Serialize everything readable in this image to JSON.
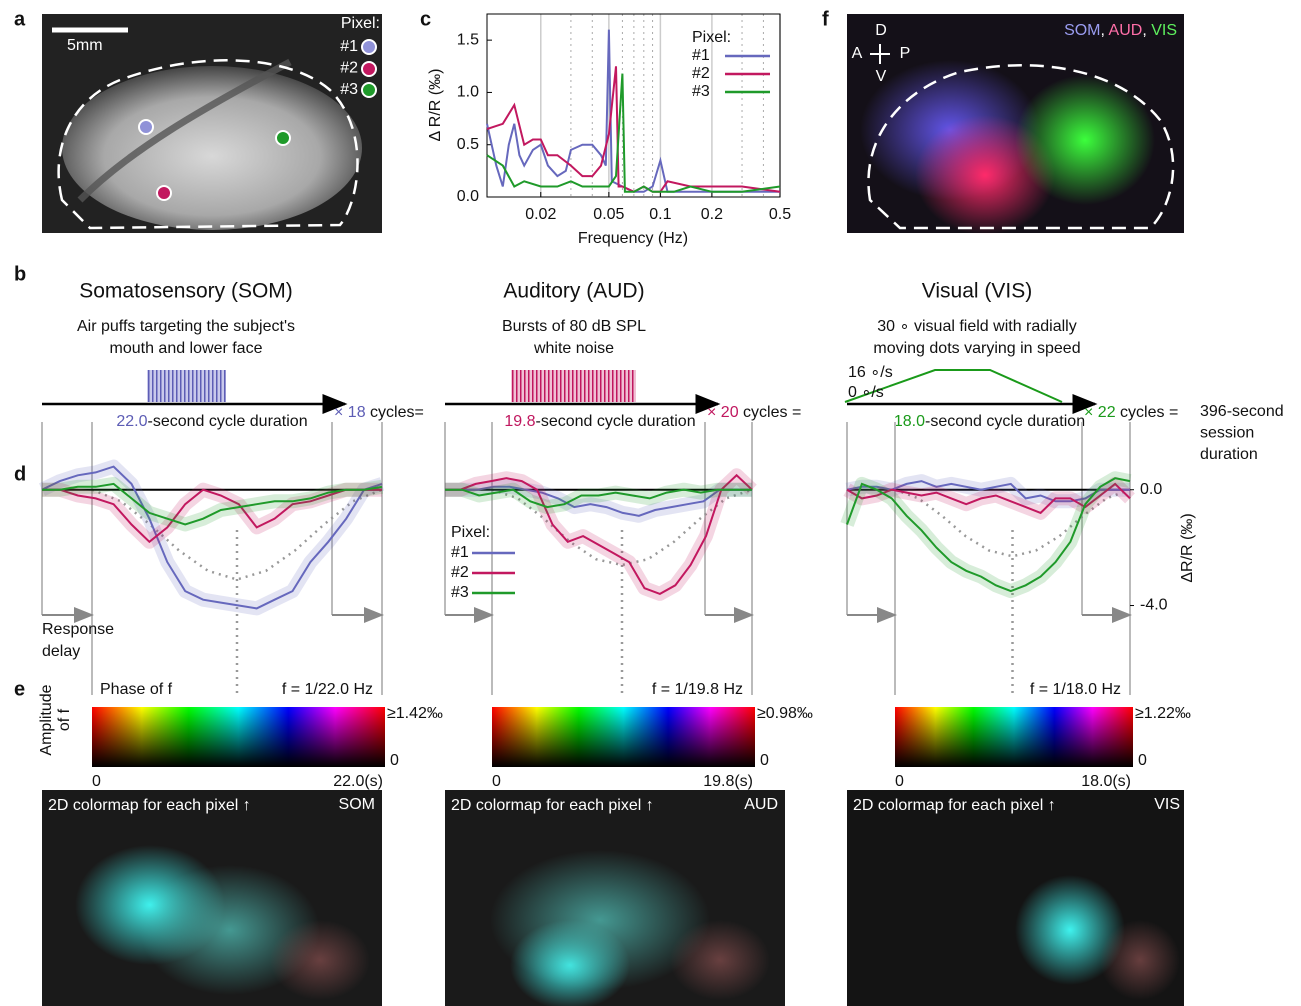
{
  "panel_labels": [
    "a",
    "b",
    "c",
    "d",
    "e",
    "f"
  ],
  "panel_a": {
    "scale_bar": "5mm",
    "legend_title": "Pixel:",
    "pixels": [
      {
        "name": "#1",
        "color": "#6668bd"
      },
      {
        "name": "#2",
        "color": "#c2185f"
      },
      {
        "name": "#3",
        "color": "#1f9a2a"
      }
    ]
  },
  "panel_c": {
    "type": "line",
    "ylabel": "Δ R/R (‰)",
    "xlabel": "Frequency (Hz)",
    "log_x": true,
    "grid": true,
    "xlim": [
      0.0097,
      0.5
    ],
    "ylim": [
      0,
      1.75
    ],
    "xticks": [
      0.02,
      0.05,
      0.1,
      0.2,
      0.5
    ],
    "yticks": [
      {
        "value": 0,
        "label": "0.0"
      },
      0.5,
      {
        "value": 1,
        "label": "1.0"
      },
      1.5
    ],
    "dotted_lines": [
      0.03,
      0.04,
      0.06,
      0.07,
      0.08,
      0.09,
      0.3,
      0.4
    ],
    "series": [
      {
        "x": [
          0.0097,
          0.011,
          0.012,
          0.013,
          0.014,
          0.015,
          0.016,
          0.018,
          0.02,
          0.022,
          0.025,
          0.028,
          0.03,
          0.035,
          0.04,
          0.045,
          0.048,
          0.05,
          0.052,
          0.06,
          0.07,
          0.08,
          0.09,
          0.1,
          0.11,
          0.15,
          0.2,
          0.3,
          0.5
        ],
        "values": [
          0.7,
          0.3,
          0.1,
          0.5,
          0.7,
          0.4,
          0.3,
          0.45,
          0.5,
          0.3,
          0.2,
          0.25,
          0.45,
          0.5,
          0.5,
          0.4,
          0.3,
          1.6,
          0.15,
          0.1,
          0.05,
          0.05,
          0.1,
          0.35,
          0.05,
          0.05,
          0.05,
          0.05,
          0.05
        ]
      },
      {
        "x": [
          0.0097,
          0.012,
          0.014,
          0.016,
          0.018,
          0.02,
          0.022,
          0.025,
          0.03,
          0.035,
          0.04,
          0.045,
          0.05,
          0.055,
          0.057,
          0.06,
          0.07,
          0.08,
          0.09,
          0.1,
          0.11,
          0.15,
          0.2,
          0.3,
          0.5
        ],
        "values": [
          0.65,
          0.7,
          0.88,
          0.5,
          0.55,
          0.55,
          0.4,
          0.4,
          0.3,
          0.2,
          0.2,
          0.3,
          0.6,
          1.25,
          0.1,
          0.1,
          0.05,
          0.1,
          0.05,
          0.05,
          0.15,
          0.1,
          0.1,
          0.1,
          0.05
        ]
      },
      {
        "x": [
          0.0097,
          0.012,
          0.014,
          0.016,
          0.02,
          0.025,
          0.03,
          0.035,
          0.04,
          0.05,
          0.055,
          0.06,
          0.062,
          0.07,
          0.08,
          0.09,
          0.1,
          0.12,
          0.15,
          0.2,
          0.3,
          0.5
        ],
        "values": [
          0.4,
          0.3,
          0.1,
          0.15,
          0.1,
          0.1,
          0.15,
          0.1,
          0.1,
          0.1,
          0.2,
          1.18,
          0.05,
          0.05,
          0.1,
          0.05,
          0.05,
          0.05,
          0.1,
          0.05,
          0.05,
          0.1
        ]
      }
    ]
  },
  "panel_f": {
    "orientation": {
      "dorsal": "D",
      "anterior": "A",
      "posterior": "P",
      "ventral": "V"
    },
    "legend": [
      {
        "text": "SOM",
        "color": "#9a9cf0"
      },
      {
        "text": ", ",
        "color": "#ffffff"
      },
      {
        "text": "AUD",
        "color": "#ff6fa8"
      },
      {
        "text": ", ",
        "color": "#ffffff"
      },
      {
        "text": "VIS",
        "color": "#5ef05e"
      }
    ]
  },
  "modalities": [
    {
      "title": "Somatosensory (SOM)",
      "color": "#5d5db5",
      "description": [
        "Air puffs targeting the subject's",
        "mouth and lower face"
      ],
      "cycle_seconds": "22.0",
      "cycle_text": "-second cycle duration",
      "multiplier": "× 18",
      "cycles_text": " cycles="
    },
    {
      "title": "Auditory (AUD)",
      "color": "#c0175f",
      "description": [
        "Bursts of 80 dB SPL",
        "white noise"
      ],
      "cycle_seconds": "19.8",
      "cycle_text": "-second cycle duration",
      "multiplier": "× 20",
      "cycles_text": " cycles ="
    },
    {
      "title": "Visual (VIS)",
      "color": "#1a9a1a",
      "description": [
        "30 ∘ visual field with radially",
        "moving dots varying in speed"
      ],
      "speed_labels": [
        "16 ∘/s",
        "0 ∘/s"
      ],
      "cycle_seconds": "18.0",
      "cycle_text": "-second cycle duration",
      "multiplier": "× 22",
      "cycles_text": " cycles =",
      "session": [
        "396-second",
        "session",
        "duration"
      ]
    }
  ],
  "panel_d": {
    "ylabel": "ΔR/R (‰)",
    "ylim": [
      -4.5,
      1.2
    ],
    "yticks": [
      {
        "value": 0,
        "label": "0.0"
      },
      {
        "value": -4,
        "label": "-4.0"
      }
    ],
    "response_delay": [
      "Response",
      "delay"
    ],
    "legend_title": "Pixel:",
    "traces": [
      {
        "series": [
          {
            "values": [
              0,
              0.3,
              0.5,
              0.6,
              0.8,
              0.2,
              -1.0,
              -2.5,
              -3.5,
              -3.8,
              -3.9,
              -4.0,
              -4.1,
              -3.8,
              -3.5,
              -2.5,
              -1.8,
              -1.0,
              0,
              0.2
            ]
          },
          {
            "values": [
              0,
              0,
              -0.2,
              -0.3,
              -0.5,
              -1.2,
              -1.8,
              -1.3,
              -0.5,
              0,
              -0.2,
              -0.5,
              -1.3,
              -1.0,
              -0.5,
              -0.4,
              -0.2,
              0,
              0,
              0
            ]
          },
          {
            "values": [
              0,
              0,
              0.1,
              0.1,
              0.2,
              -0.3,
              -0.8,
              -1.0,
              -1.2,
              -1.0,
              -0.7,
              -0.6,
              -0.5,
              -0.4,
              -0.4,
              -0.3,
              -0.1,
              0,
              0,
              0.1
            ]
          }
        ],
        "fit": [
          0,
          -0.4,
          -1.2,
          -2.1,
          -2.8,
          -3.1,
          -2.8,
          -2.1,
          -1.2,
          -0.4,
          0
        ]
      },
      {
        "series": [
          {
            "values": [
              0,
              0,
              0,
              0.1,
              0.1,
              0,
              -0.1,
              -0.3,
              -0.6,
              -0.5,
              -0.6,
              -0.8,
              -0.9,
              -0.7,
              -0.6,
              -0.5,
              -0.4,
              0,
              0,
              0
            ]
          },
          {
            "values": [
              0,
              0,
              0.2,
              0.3,
              0.4,
              0.3,
              0,
              -1.2,
              -1.8,
              -1.6,
              -1.9,
              -2.2,
              -2.5,
              -3.4,
              -3.6,
              -3.3,
              -2.6,
              -1.6,
              0,
              0.5,
              0
            ]
          },
          {
            "values": [
              0,
              0,
              -0.2,
              -0.1,
              0,
              -0.4,
              -0.6,
              -0.5,
              -0.2,
              -0.2,
              -0.1,
              -0.2,
              -0.3,
              -0.1,
              0,
              -0.1,
              0,
              0,
              0
            ]
          }
        ],
        "fit": [
          0,
          -0.3,
          -1.0,
          -1.8,
          -2.4,
          -2.6,
          -2.4,
          -1.8,
          -1.0,
          -0.3,
          0
        ]
      },
      {
        "series": [
          {
            "values": [
              0,
              0.1,
              0.1,
              0,
              0.2,
              0.3,
              0.1,
              0.2,
              0.1,
              0,
              0.1,
              0.2,
              -0.3,
              -0.2,
              -0.4,
              -0.4,
              -0.3,
              0,
              0,
              0
            ]
          },
          {
            "values": [
              0,
              -0.3,
              -0.2,
              0,
              -0.1,
              -0.2,
              -0.1,
              -0.3,
              -0.5,
              -0.3,
              -0.2,
              -0.4,
              -0.6,
              -0.8,
              -0.3,
              -0.3,
              -0.6,
              -0.2,
              0.2,
              -0.3
            ]
          },
          {
            "values": [
              -1.2,
              0.2,
              0,
              -0.3,
              -0.9,
              -1.4,
              -2.0,
              -2.5,
              -2.8,
              -3.0,
              -3.3,
              -3.5,
              -3.3,
              -3.0,
              -2.5,
              -1.8,
              -0.5,
              0.1,
              0.4,
              0.3
            ]
          }
        ],
        "fit": [
          0,
          -0.3,
          -0.9,
          -1.6,
          -2.1,
          -2.3,
          -2.1,
          -1.6,
          -0.9,
          -0.3,
          0
        ]
      }
    ]
  },
  "panel_e": {
    "amplitude_label": [
      "Amplitude",
      "of f"
    ],
    "phase_label": "Phase of f",
    "colorbars": [
      {
        "frequency": "f = 1/22.0 Hz",
        "max": "≥1.42‰",
        "min": "0",
        "start": "0",
        "end": "22.0(s)"
      },
      {
        "frequency": "f = 1/19.8 Hz",
        "max": "≥0.98‰",
        "min": "0",
        "start": "0",
        "end": "19.8(s)"
      },
      {
        "frequency": "f = 1/18.0 Hz",
        "max": "≥1.22‰",
        "min": "0",
        "start": "0",
        "end": "18.0(s)"
      }
    ],
    "maps": [
      {
        "caption": "2D colormap for each pixel ↑",
        "tag": "SOM"
      },
      {
        "caption": "2D colormap for each pixel ↑",
        "tag": "AUD"
      },
      {
        "caption": "2D colormap for each pixel ↑",
        "tag": "VIS"
      }
    ]
  }
}
